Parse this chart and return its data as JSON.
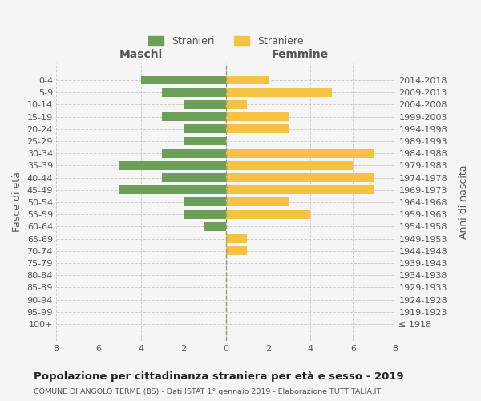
{
  "age_groups": [
    "100+",
    "95-99",
    "90-94",
    "85-89",
    "80-84",
    "75-79",
    "70-74",
    "65-69",
    "60-64",
    "55-59",
    "50-54",
    "45-49",
    "40-44",
    "35-39",
    "30-34",
    "25-29",
    "20-24",
    "15-19",
    "10-14",
    "5-9",
    "0-4"
  ],
  "birth_years": [
    "≤ 1918",
    "1919-1923",
    "1924-1928",
    "1929-1933",
    "1934-1938",
    "1939-1943",
    "1944-1948",
    "1949-1953",
    "1954-1958",
    "1959-1963",
    "1964-1968",
    "1969-1973",
    "1974-1978",
    "1979-1983",
    "1984-1988",
    "1989-1993",
    "1994-1998",
    "1999-2003",
    "2004-2008",
    "2009-2013",
    "2014-2018"
  ],
  "males": [
    0,
    0,
    0,
    0,
    0,
    0,
    0,
    0,
    1,
    2,
    2,
    5,
    3,
    5,
    3,
    2,
    2,
    3,
    2,
    3,
    4
  ],
  "females": [
    0,
    0,
    0,
    0,
    0,
    0,
    1,
    1,
    0,
    4,
    3,
    7,
    7,
    6,
    7,
    0,
    3,
    3,
    1,
    5,
    2
  ],
  "male_color": "#6d9e5a",
  "female_color": "#f5c242",
  "background_color": "#f5f5f5",
  "grid_color": "#cccccc",
  "title": "Popolazione per cittadinanza straniera per età e sesso - 2019",
  "subtitle": "COMUNE DI ANGOLO TERME (BS) - Dati ISTAT 1° gennaio 2019 - Elaborazione TUTTITALIA.IT",
  "xlabel_left": "Maschi",
  "xlabel_right": "Femmine",
  "ylabel_left": "Fasce di età",
  "ylabel_right": "Anni di nascita",
  "legend_male": "Stranieri",
  "legend_female": "Straniere",
  "xlim": 8,
  "xticks": [
    -8,
    -6,
    -4,
    -2,
    0,
    2,
    4,
    6,
    8
  ],
  "xtick_labels": [
    "8",
    "6",
    "4",
    "2",
    "0",
    "2",
    "4",
    "6",
    "8"
  ]
}
